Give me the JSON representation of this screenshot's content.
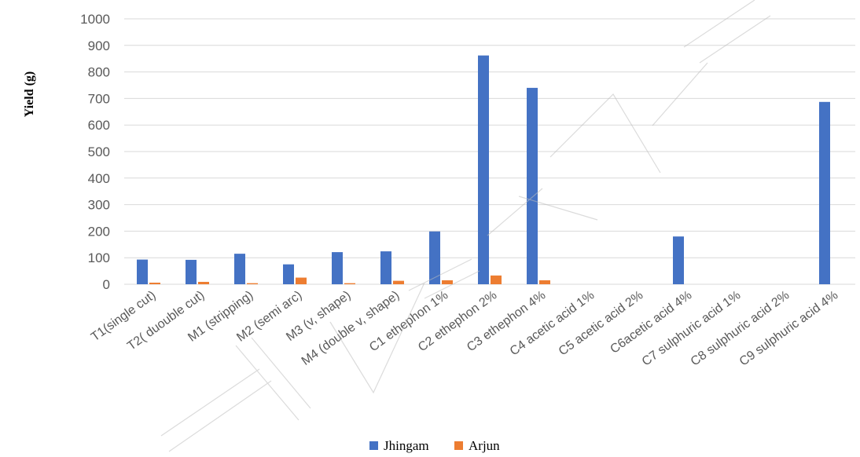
{
  "chart_data": {
    "type": "bar",
    "ylabel": "Yield (g)",
    "xlabel": "",
    "ylim": [
      0,
      1000
    ],
    "yticks": [
      0,
      100,
      200,
      300,
      400,
      500,
      600,
      700,
      800,
      900,
      1000
    ],
    "grid": true,
    "legend_position": "bottom",
    "categories": [
      "T1(single cut)",
      "T2( duouble cut)",
      "M1 (stripping)",
      "M2 (semi arc)",
      "M3 (v, shape)",
      "M4 (double v, shape)",
      "C1 ethephon 1%",
      "C2 ethephon 2%",
      "C3 ethephon 4%",
      "C4 acetic acid 1%",
      "C5 acetic acid 2%",
      "C6acetic acid 4%",
      "C7 sulphuric acid 1%",
      "C8 sulphuric acid 2%",
      "C9 sulphuric acid 4%"
    ],
    "series": [
      {
        "name": "Jhingam",
        "color": "#4472C4",
        "values": [
          93,
          92,
          115,
          75,
          121,
          124,
          199,
          862,
          740,
          0,
          0,
          180,
          0,
          0,
          687
        ]
      },
      {
        "name": "Arjun",
        "color": "#ED7D31",
        "values": [
          6,
          9,
          4,
          25,
          4,
          13,
          15,
          33,
          15,
          0,
          0,
          0,
          0,
          0,
          0
        ]
      }
    ]
  }
}
